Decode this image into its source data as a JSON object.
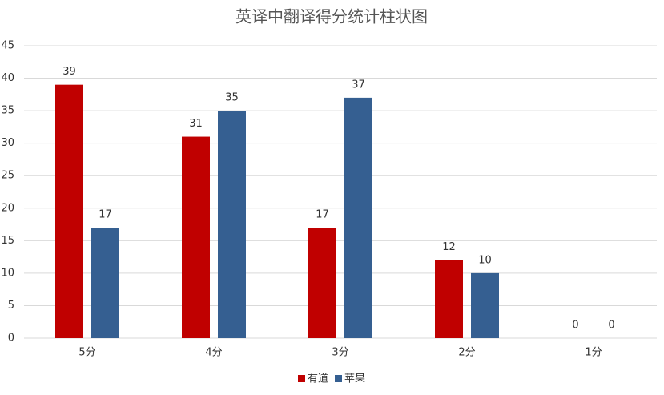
{
  "chart_data": {
    "type": "bar",
    "title": "英译中翻译得分统计柱状图",
    "categories": [
      "5分",
      "4分",
      "3分",
      "2分",
      "1分"
    ],
    "series": [
      {
        "name": "有道",
        "color": "#c00000",
        "values": [
          39,
          31,
          17,
          12,
          0
        ]
      },
      {
        "name": "苹果",
        "color": "#355f91",
        "values": [
          17,
          35,
          37,
          10,
          0
        ]
      }
    ],
    "ylim": [
      0,
      45
    ],
    "yticks": [
      0,
      5,
      10,
      15,
      20,
      25,
      30,
      35,
      40,
      45
    ],
    "grid": true,
    "legend": "bottom"
  }
}
